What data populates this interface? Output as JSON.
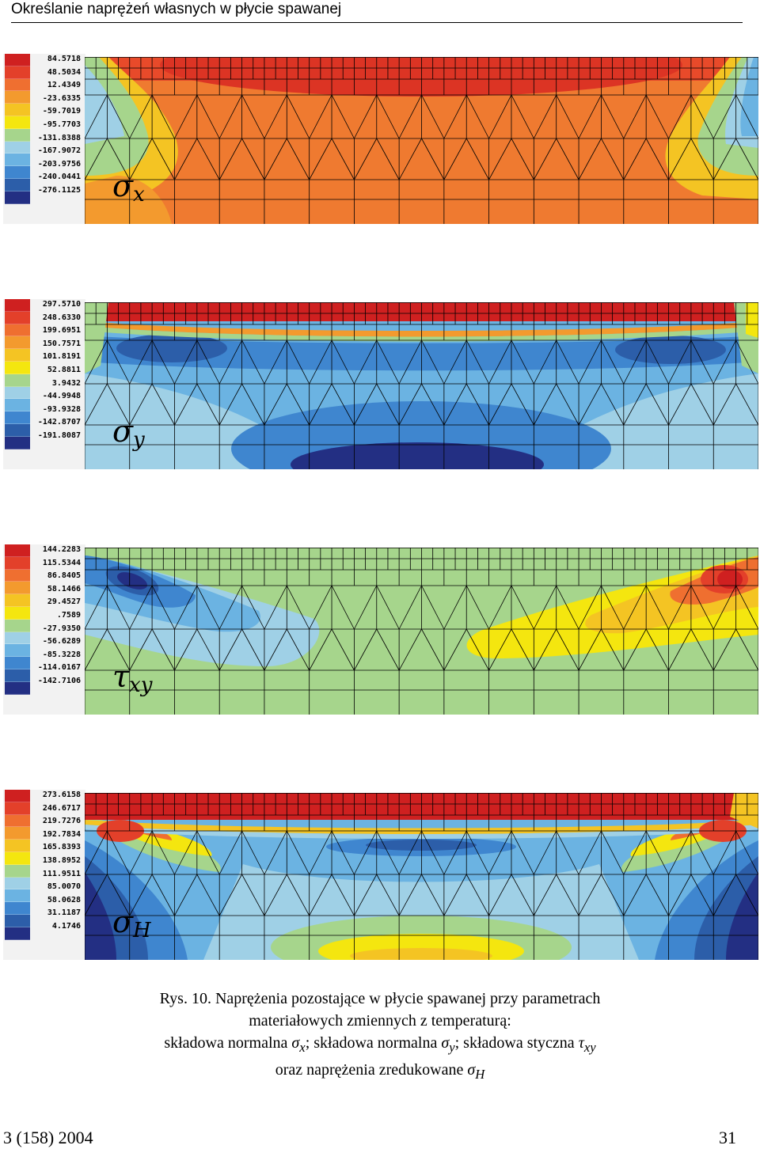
{
  "header": {
    "running_title": "Określanie naprężeń własnych w płycie spawanej"
  },
  "palette": [
    "#cf2020",
    "#e3402a",
    "#ef6f30",
    "#f39a2e",
    "#f4c423",
    "#f4e60f",
    "#a6d58c",
    "#9fd0e6",
    "#6bb3e2",
    "#3f86cf",
    "#2c5ea9",
    "#232f83"
  ],
  "panels": [
    {
      "id": "sigma-x",
      "symbol": "σ",
      "subscript": "x",
      "legend": [
        "84.5718",
        "48.5034",
        "12.4349",
        "-23.6335",
        "-59.7019",
        "-95.7703",
        "-131.8388",
        "-167.9072",
        "-203.9756",
        "-240.0441",
        "-276.1125"
      ]
    },
    {
      "id": "sigma-y",
      "symbol": "σ",
      "subscript": "y",
      "legend": [
        "297.5710",
        "248.6330",
        "199.6951",
        "150.7571",
        "101.8191",
        "52.8811",
        "3.9432",
        "-44.9948",
        "-93.9328",
        "-142.8707",
        "-191.8087"
      ]
    },
    {
      "id": "tau-xy",
      "symbol": "τ",
      "subscript": "xy",
      "legend": [
        "144.2283",
        "115.5344",
        "86.8405",
        "58.1466",
        "29.4527",
        ".7589",
        "-27.9350",
        "-56.6289",
        "-85.3228",
        "-114.0167",
        "-142.7106"
      ]
    },
    {
      "id": "sigma-h",
      "symbol": "σ",
      "subscript": "H",
      "legend": [
        "273.6158",
        "246.6717",
        "219.7276",
        "192.7834",
        "165.8393",
        "138.8952",
        "111.9511",
        "85.0070",
        "58.0628",
        "31.1187",
        "4.1746"
      ]
    }
  ],
  "caption": {
    "line1": "Rys. 10. Naprężenia pozostające w płycie spawanej przy parametrach",
    "line2": "materiałowych zmiennych z temperaturą:",
    "line3_a": "składowa normalna ",
    "line3_sx": "σ",
    "line3_sx_sub": "x",
    "line3_b": "; składowa normalna ",
    "line3_sy": "σ",
    "line3_sy_sub": "y",
    "line3_c": "; składowa styczna ",
    "line3_txy": "τ",
    "line3_txy_sub": "xy",
    "line4_a": "oraz naprężenia zredukowane ",
    "line4_sh": "σ",
    "line4_sh_sub": "H"
  },
  "footer": {
    "issue": "3 (158) 2004",
    "page": "31"
  }
}
